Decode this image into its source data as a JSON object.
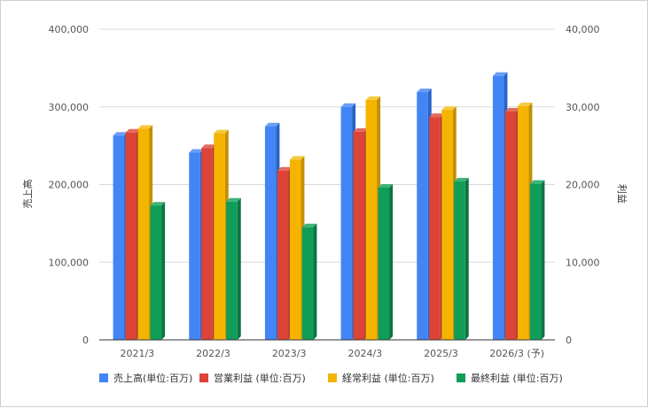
{
  "chart_data": {
    "type": "bar",
    "style": "3d-clustered-bar",
    "categories": [
      "2021/3",
      "2022/3",
      "2023/3",
      "2024/3",
      "2025/3",
      "2026/3 (予)"
    ],
    "y_left": {
      "label": "売上高",
      "min": 0,
      "max": 400000,
      "ticks": [
        0,
        100000,
        200000,
        300000,
        400000
      ],
      "tick_labels": [
        "0",
        "100,000",
        "200,000",
        "300,000",
        "400,000"
      ]
    },
    "y_right": {
      "label": "利益",
      "min": 0,
      "max": 40000,
      "ticks": [
        0,
        10000,
        20000,
        30000,
        40000
      ],
      "tick_labels": [
        "0",
        "10,000",
        "20,000",
        "30,000",
        "40,000"
      ]
    },
    "series": [
      {
        "name": "売上高(単位:百万)",
        "axis": "left",
        "color": "#4285f4",
        "side_color": "#2a63c7",
        "top_color": "#6b9ef7",
        "values": [
          263000,
          241000,
          275000,
          300000,
          319000,
          340000
        ]
      },
      {
        "name": "営業利益 (単位:百万)",
        "axis": "right",
        "color": "#db4437",
        "side_color": "#a9312a",
        "top_color": "#e46b60",
        "values": [
          26700,
          24700,
          21800,
          26800,
          28700,
          29400
        ]
      },
      {
        "name": "経常利益 (単位:百万)",
        "axis": "right",
        "color": "#f4b400",
        "side_color": "#c48f00",
        "top_color": "#f7c842",
        "values": [
          27200,
          26600,
          23200,
          30900,
          29600,
          30100
        ]
      },
      {
        "name": "最終利益 (単位:百万)",
        "axis": "right",
        "color": "#0f9d58",
        "side_color": "#0b7541",
        "top_color": "#3db47a",
        "values": [
          17300,
          17800,
          14500,
          19600,
          20400,
          20100
        ]
      }
    ],
    "grid": true,
    "legend_position": "bottom"
  }
}
